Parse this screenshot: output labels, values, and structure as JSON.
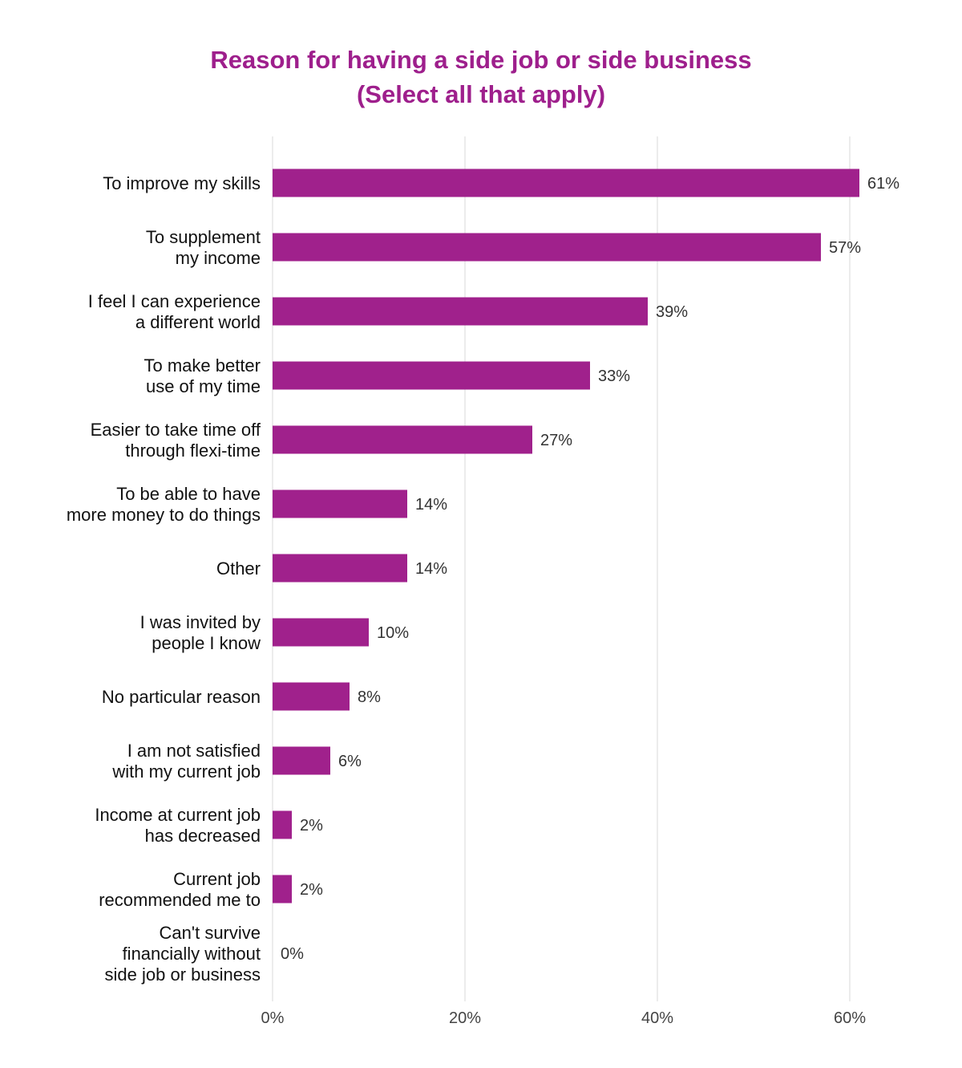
{
  "chart_data": {
    "type": "bar",
    "orientation": "horizontal",
    "title": "Reason for having a side job or side business",
    "subtitle": "(Select all that apply)",
    "categories": [
      [
        "To improve my skills"
      ],
      [
        "To supplement",
        "my income"
      ],
      [
        "I feel I can experience",
        "a different world"
      ],
      [
        "To make better",
        "use of my time"
      ],
      [
        "Easier to take time off",
        "through flexi-time"
      ],
      [
        "To be able to have",
        "more money to do things"
      ],
      [
        "Other"
      ],
      [
        "I was invited by",
        "people I know"
      ],
      [
        "No particular reason"
      ],
      [
        "I am not satisfied",
        "with my current job"
      ],
      [
        "Income at current job",
        "has decreased"
      ],
      [
        "Current job",
        "recommended me to"
      ],
      [
        "Can't survive",
        "financially without",
        "side job or business"
      ]
    ],
    "values": [
      61,
      57,
      39,
      33,
      27,
      14,
      14,
      10,
      8,
      6,
      2,
      2,
      0
    ],
    "value_labels": [
      "61%",
      "57%",
      "39%",
      "33%",
      "27%",
      "14%",
      "14%",
      "10%",
      "8%",
      "6%",
      "2%",
      "2%",
      "0%"
    ],
    "xlim": [
      0,
      60
    ],
    "xticks": [
      0,
      20,
      40,
      60
    ],
    "xtick_labels": [
      "0%",
      "20%",
      "40%",
      "60%"
    ],
    "grid": true,
    "colors": {
      "bar": "#a0218c",
      "title": "#9e1f8c",
      "grid": "#e6e6e6"
    }
  }
}
